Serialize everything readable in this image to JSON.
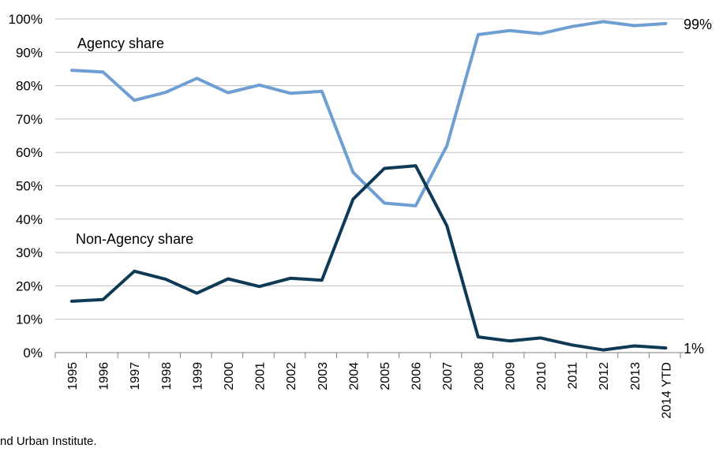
{
  "chart_data": {
    "type": "line",
    "categories": [
      "1995",
      "1996",
      "1997",
      "1998",
      "1999",
      "2000",
      "2001",
      "2002",
      "2003",
      "2004",
      "2005",
      "2006",
      "2007",
      "2008",
      "2009",
      "2010",
      "2011",
      "2012",
      "2013",
      "2014 YTD"
    ],
    "ylim": [
      0,
      100
    ],
    "yticks": [
      "0%",
      "10%",
      "20%",
      "30%",
      "40%",
      "50%",
      "60%",
      "70%",
      "80%",
      "90%",
      "100%"
    ],
    "grid": true,
    "series": [
      {
        "name": "Agency share",
        "color": "#6f9fd2",
        "values": [
          84.6,
          84.1,
          75.6,
          78.0,
          82.2,
          77.9,
          80.2,
          77.7,
          78.3,
          54.0,
          44.8,
          44.0,
          62.0,
          95.3,
          96.5,
          95.6,
          97.7,
          99.2,
          98.0,
          98.6
        ],
        "end_label": "99%"
      },
      {
        "name": "Non-Agency share",
        "color": "#0e3a55",
        "values": [
          15.4,
          15.9,
          24.4,
          22.0,
          17.8,
          22.1,
          19.8,
          22.3,
          21.7,
          46.0,
          55.2,
          56.0,
          38.0,
          4.7,
          3.5,
          4.4,
          2.3,
          0.8,
          2.0,
          1.4
        ],
        "end_label": "1%"
      }
    ]
  },
  "footnote": "nd Urban Institute."
}
